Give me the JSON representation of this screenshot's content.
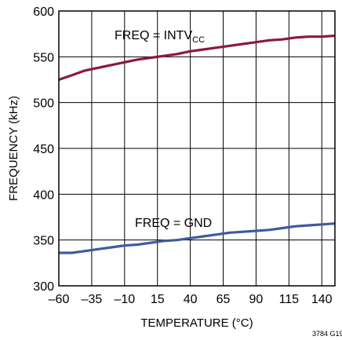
{
  "chart_data": {
    "type": "line",
    "xlabel": "TEMPERATURE (°C)",
    "ylabel": "FREQUENCY (kHz)",
    "xlim": [
      -60,
      150
    ],
    "ylim": [
      300,
      600
    ],
    "x_ticks": [
      -60,
      -35,
      -10,
      15,
      40,
      65,
      90,
      115,
      140
    ],
    "y_ticks": [
      300,
      350,
      400,
      450,
      500,
      550,
      600
    ],
    "x_tick_labels": [
      "–60",
      "–35",
      "–10",
      "15",
      "40",
      "65",
      "90",
      "115",
      "140"
    ],
    "y_tick_labels": [
      "300",
      "350",
      "400",
      "450",
      "500",
      "550",
      "600"
    ],
    "grid": true,
    "series": [
      {
        "name": "FREQ = INTVCC",
        "label_main": "FREQ = INTV",
        "label_sub": "CC",
        "color": "#8b1a3a",
        "x": [
          -60,
          -50,
          -40,
          -30,
          -20,
          -10,
          0,
          10,
          20,
          30,
          40,
          50,
          60,
          70,
          80,
          90,
          100,
          110,
          120,
          130,
          140,
          150
        ],
        "y": [
          525,
          530,
          535,
          538,
          541,
          544,
          547,
          549,
          551,
          553,
          556,
          558,
          560,
          562,
          564,
          566,
          568,
          569,
          571,
          572,
          572,
          573
        ]
      },
      {
        "name": "FREQ = GND",
        "label_main": "FREQ = GND",
        "label_sub": "",
        "color": "#3f5aa0",
        "x": [
          -60,
          -50,
          -40,
          -30,
          -20,
          -10,
          0,
          10,
          20,
          30,
          40,
          50,
          60,
          70,
          80,
          90,
          100,
          110,
          120,
          130,
          140,
          150
        ],
        "y": [
          336,
          336,
          338,
          340,
          342,
          344,
          345,
          347,
          349,
          350,
          352,
          354,
          356,
          358,
          359,
          360,
          361,
          363,
          365,
          366,
          367,
          368
        ]
      }
    ],
    "figure_id": "3784 G19"
  }
}
